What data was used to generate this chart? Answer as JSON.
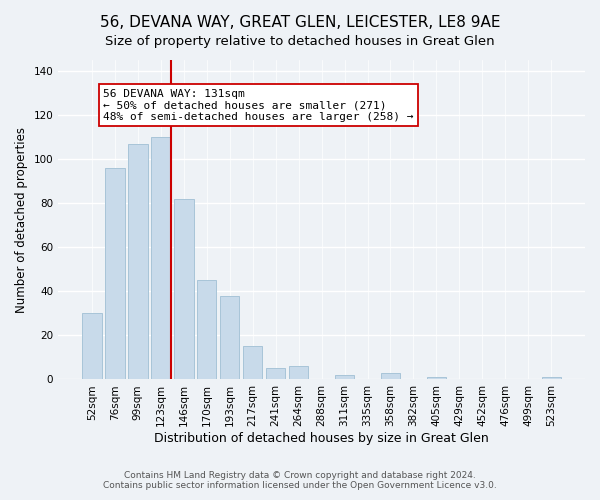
{
  "title": "56, DEVANA WAY, GREAT GLEN, LEICESTER, LE8 9AE",
  "subtitle": "Size of property relative to detached houses in Great Glen",
  "xlabel": "Distribution of detached houses by size in Great Glen",
  "ylabel": "Number of detached properties",
  "bar_labels": [
    "52sqm",
    "76sqm",
    "99sqm",
    "123sqm",
    "146sqm",
    "170sqm",
    "193sqm",
    "217sqm",
    "241sqm",
    "264sqm",
    "288sqm",
    "311sqm",
    "335sqm",
    "358sqm",
    "382sqm",
    "405sqm",
    "429sqm",
    "452sqm",
    "476sqm",
    "499sqm",
    "523sqm"
  ],
  "bar_values": [
    30,
    96,
    107,
    110,
    82,
    45,
    38,
    15,
    5,
    6,
    0,
    2,
    0,
    3,
    0,
    1,
    0,
    0,
    0,
    0,
    1
  ],
  "bar_color": "#c8daea",
  "bar_edge_color": "#a8c4d8",
  "vline_color": "#cc0000",
  "annotation_text": "56 DEVANA WAY: 131sqm\n← 50% of detached houses are smaller (271)\n48% of semi-detached houses are larger (258) →",
  "annotation_box_edgecolor": "#cc0000",
  "annotation_box_facecolor": "#ffffff",
  "ylim": [
    0,
    145
  ],
  "yticks": [
    0,
    20,
    40,
    60,
    80,
    100,
    120,
    140
  ],
  "title_fontsize": 11,
  "subtitle_fontsize": 9.5,
  "xlabel_fontsize": 9,
  "ylabel_fontsize": 8.5,
  "tick_fontsize": 7.5,
  "footer1": "Contains HM Land Registry data © Crown copyright and database right 2024.",
  "footer2": "Contains public sector information licensed under the Open Government Licence v3.0.",
  "background_color": "#eef2f6"
}
